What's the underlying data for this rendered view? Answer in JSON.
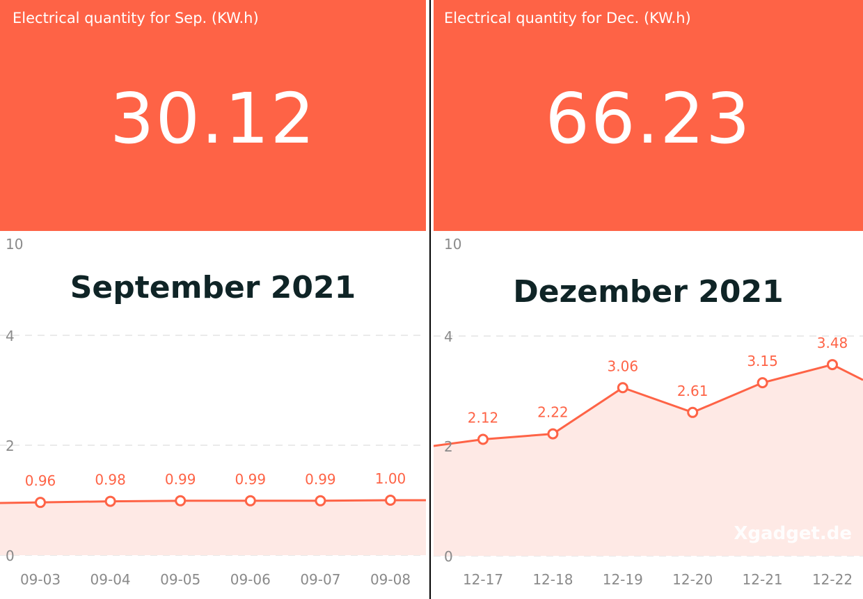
{
  "panels": [
    {
      "header_label": "Electrical quantity for Sep. (KW.h)",
      "total": "30.12",
      "title": "September 2021"
    },
    {
      "header_label": "Electrical quantity for Dec. (KW.h)",
      "total": "66.23",
      "title": "Dezember 2021",
      "watermark": "Xgadget.de"
    }
  ],
  "chart_data": [
    {
      "type": "area",
      "y_ticks": [
        0,
        2,
        4,
        10
      ],
      "categories": [
        "09-03",
        "09-04",
        "09-05",
        "09-06",
        "09-07",
        "09-08"
      ],
      "values": [
        0.96,
        0.98,
        0.99,
        0.99,
        0.99,
        1.0
      ],
      "value_labels": [
        "0.96",
        "0.98",
        "0.99",
        "0.99",
        "0.99",
        "1.00"
      ],
      "line_left_value": 0.95,
      "line_right_value": 1.0,
      "color": "#fe6346",
      "fill_color": "#fee9e5",
      "grid": true
    },
    {
      "type": "area",
      "y_ticks": [
        0,
        2,
        4,
        10
      ],
      "categories": [
        "12-17",
        "12-18",
        "12-19",
        "12-20",
        "12-21",
        "12-22"
      ],
      "values": [
        2.12,
        2.22,
        3.06,
        2.61,
        3.15,
        3.48
      ],
      "value_labels": [
        "2.12",
        "2.22",
        "3.06",
        "2.61",
        "3.15",
        "3.48"
      ],
      "line_left_value": 2.0,
      "line_right_value": 3.2,
      "color": "#fe6346",
      "fill_color": "#fee9e5",
      "grid": true
    }
  ]
}
